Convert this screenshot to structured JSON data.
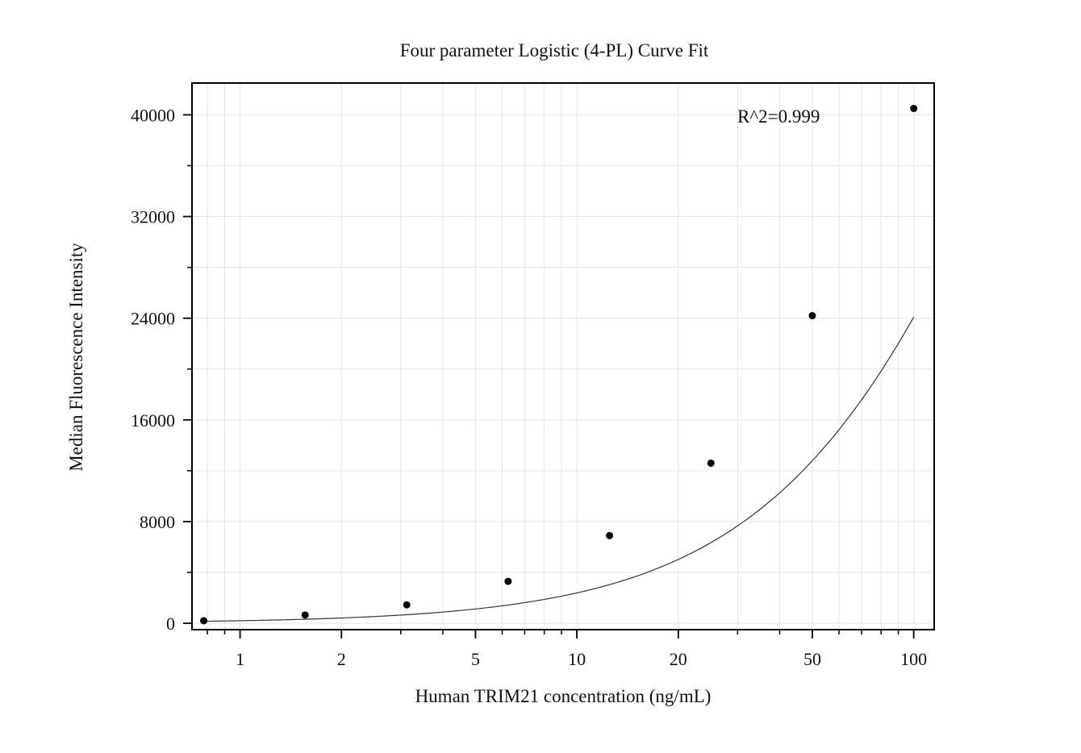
{
  "chart_data": {
    "type": "scatter",
    "title": "Four parameter Logistic (4-PL) Curve Fit",
    "xlabel": "Human TRIM21 concentration (ng/mL)",
    "ylabel": "Median Fluorescence Intensity",
    "x_scale": "log",
    "xlim": [
      0.72,
      115
    ],
    "ylim": [
      -500,
      42500
    ],
    "x_ticks": [
      1,
      2,
      5,
      10,
      20,
      50,
      100
    ],
    "x_tick_labels": [
      "1",
      "2",
      "5",
      "10",
      "20",
      "50",
      "100"
    ],
    "y_ticks": [
      0,
      8000,
      16000,
      24000,
      32000,
      40000
    ],
    "y_tick_labels": [
      "0",
      "8000",
      "16000",
      "24000",
      "32000",
      "40000"
    ],
    "grid": true,
    "annotation": "R^2=0.999",
    "series": [
      {
        "kind": "points",
        "x": [
          0.78,
          1.56,
          3.125,
          6.25,
          12.5,
          25,
          50,
          100
        ],
        "y": [
          200,
          650,
          1450,
          3300,
          6900,
          12600,
          24200,
          40500
        ]
      },
      {
        "kind": "fit-curve",
        "model": "4PL",
        "params": {
          "A": 15,
          "B": 1.115,
          "C": 280,
          "D": 100000
        }
      }
    ],
    "colors": {
      "points": "#000000",
      "curve": "#333333",
      "grid": "#e6e6e6",
      "frame": "#000000"
    }
  }
}
